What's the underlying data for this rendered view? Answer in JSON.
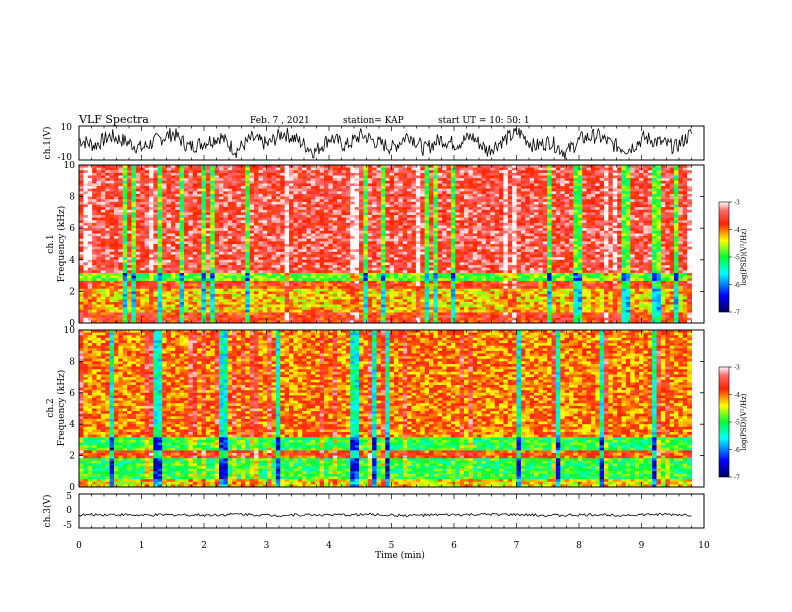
{
  "header": {
    "title": "VLF Spectra",
    "date": "Feb. 7 , 2021",
    "station": "station= KAP",
    "start": "start  UT =   10: 50: 1"
  },
  "chart_data": [
    {
      "type": "line",
      "ylabel": "ch.1(V)",
      "ylim": [
        -10,
        10
      ],
      "y_ticks": [
        "10",
        "-10"
      ],
      "series": [
        {
          "values": [
            2.1,
            -1.4,
            4.2,
            0.8,
            -3.1,
            1.9,
            5.6,
            -2.3,
            0.4,
            3.8,
            -4.6,
            2.7,
            -0.9,
            6.1,
            1.2,
            -5.2,
            3.3,
            -1.7,
            4.8,
            0.1,
            -2.8,
            5.1,
            -3.9,
            2.2,
            -0.6,
            3.9,
            -4.4,
            1.5,
            6.4,
            -2.1,
            0.9,
            -5.7,
            2.6,
            4.4,
            -1.1,
            -3.6,
            3.1,
            0.3,
            -2.4,
            5.8
          ]
        }
      ]
    },
    {
      "type": "heatmap",
      "ylabel": "ch.1\nFrequency  (kHz)",
      "ylim": [
        0,
        10
      ],
      "y_ticks": [
        "0",
        "2",
        "4",
        "6",
        "8",
        "10"
      ],
      "colorbar": {
        "label": "log(PSD)(V²/Hz)",
        "ticks": [
          "-3",
          "-4",
          "-5",
          "-6",
          "-7"
        ],
        "range": [
          -7,
          -3
        ]
      }
    },
    {
      "type": "heatmap",
      "ylabel": "ch.2\nFrequency  (kHz)",
      "ylim": [
        0,
        10
      ],
      "y_ticks": [
        "0",
        "2",
        "4",
        "6",
        "8",
        "10"
      ],
      "colorbar": {
        "label": "log(PSD)(V²/Hz)",
        "ticks": [
          "-3",
          "-4",
          "-5",
          "-6",
          "-7"
        ],
        "range": [
          -7,
          -3
        ]
      }
    },
    {
      "type": "line",
      "ylabel": "ch.3(V)",
      "ylim": [
        -5,
        5
      ],
      "y_ticks": [
        "5",
        "0",
        "-5"
      ],
      "series": [
        {
          "values": [
            -1.2,
            -1.0,
            -1.3,
            -1.1,
            -1.2,
            -0.9,
            -1.3,
            -1.1,
            -1.2,
            -1.0,
            -1.3,
            -1.2,
            -1.1,
            -1.0,
            -1.2,
            -1.3,
            -1.1,
            -1.2,
            -1.0,
            -1.2
          ]
        }
      ]
    }
  ],
  "x_axis": {
    "label": "Time  (min)",
    "range": [
      0,
      10
    ],
    "ticks": [
      "0",
      "1",
      "2",
      "3",
      "4",
      "5",
      "6",
      "7",
      "8",
      "9",
      "10"
    ]
  }
}
